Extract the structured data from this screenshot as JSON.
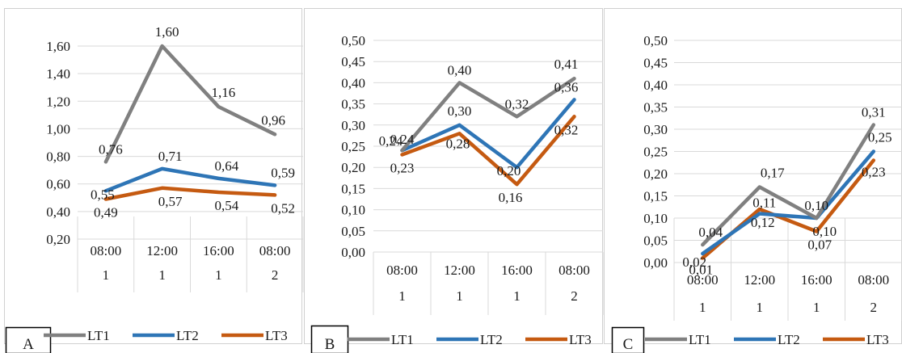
{
  "chart_data": [
    {
      "type": "line",
      "panel_letter": "A",
      "categories": [
        [
          "08:00",
          "1"
        ],
        [
          "12:00",
          "1"
        ],
        [
          "16:00",
          "1"
        ],
        [
          "08:00",
          "2"
        ]
      ],
      "ylim": [
        0.2,
        1.6
      ],
      "yticks": [
        "0,20",
        "0,40",
        "0,60",
        "0,80",
        "1,00",
        "1,20",
        "1,40",
        "1,60"
      ],
      "grid": true,
      "legend_position": "bottom",
      "series": [
        {
          "name": "LT1",
          "values": [
            0.76,
            1.6,
            1.16,
            0.96
          ],
          "labels": [
            "0,76",
            "1,60",
            "1,16",
            "0,96"
          ]
        },
        {
          "name": "LT2",
          "values": [
            0.55,
            0.71,
            0.64,
            0.59
          ],
          "labels": [
            "0,55",
            "0,71",
            "0,64",
            "0,59"
          ]
        },
        {
          "name": "LT3",
          "values": [
            0.49,
            0.57,
            0.54,
            0.52
          ],
          "labels": [
            "0,49",
            "0,57",
            "0,54",
            "0,52"
          ]
        }
      ]
    },
    {
      "type": "line",
      "panel_letter": "B",
      "categories": [
        [
          "08:00",
          "1"
        ],
        [
          "12:00",
          "1"
        ],
        [
          "16:00",
          "1"
        ],
        [
          "08:00",
          "2"
        ]
      ],
      "ylim": [
        0.0,
        0.5
      ],
      "yticks": [
        "0,00",
        "0,05",
        "0,10",
        "0,15",
        "0,20",
        "0,25",
        "0,30",
        "0,35",
        "0,40",
        "0,45",
        "0,50"
      ],
      "grid": true,
      "legend_position": "bottom",
      "series": [
        {
          "name": "LT1",
          "values": [
            0.24,
            0.4,
            0.32,
            0.41
          ],
          "labels": [
            "0,24",
            "0,40",
            "0,32",
            "0,41"
          ]
        },
        {
          "name": "LT2",
          "values": [
            0.24,
            0.3,
            0.2,
            0.36
          ],
          "labels": [
            "0,24",
            "0,30",
            "0,20",
            "0,36"
          ]
        },
        {
          "name": "LT3",
          "values": [
            0.23,
            0.28,
            0.16,
            0.32
          ],
          "labels": [
            "0,23",
            "0,28",
            "0,16",
            "0,32"
          ]
        }
      ]
    },
    {
      "type": "line",
      "panel_letter": "C",
      "categories": [
        [
          "08:00",
          "1"
        ],
        [
          "12:00",
          "1"
        ],
        [
          "16:00",
          "1"
        ],
        [
          "08:00",
          "2"
        ]
      ],
      "ylim": [
        0.0,
        0.5
      ],
      "yticks": [
        "0,00",
        "0,05",
        "0,10",
        "0,15",
        "0,20",
        "0,25",
        "0,30",
        "0,35",
        "0,40",
        "0,45",
        "0,50"
      ],
      "grid": true,
      "legend_position": "bottom",
      "series": [
        {
          "name": "LT1",
          "values": [
            0.04,
            0.17,
            0.1,
            0.31
          ],
          "labels": [
            "0,04",
            "0,17",
            "0,10",
            "0,31"
          ]
        },
        {
          "name": "LT2",
          "values": [
            0.02,
            0.11,
            0.1,
            0.25
          ],
          "labels": [
            "0,02",
            "0,11",
            "0,10",
            "0,25"
          ]
        },
        {
          "name": "LT3",
          "values": [
            0.01,
            0.12,
            0.07,
            0.23
          ],
          "labels": [
            "0,01",
            "0,12",
            "0,07",
            "0,23"
          ]
        }
      ]
    }
  ],
  "colors": {
    "LT1": "#808080",
    "LT2": "#2e75b6",
    "LT3": "#c55a11",
    "grid": "#d9d9d9",
    "frame": "#d0d0d0"
  }
}
